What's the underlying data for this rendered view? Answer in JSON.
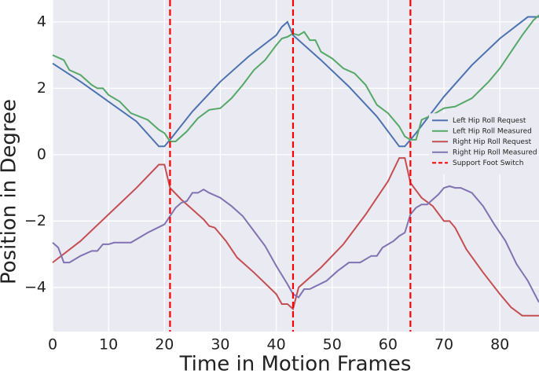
{
  "chart_data": {
    "type": "line",
    "xlabel": "Time in Motion Frames",
    "ylabel": "Position in Degree",
    "xlim": [
      0,
      87
    ],
    "ylim": [
      -5.33,
      4.66
    ],
    "xticks": [
      0,
      10,
      20,
      30,
      40,
      50,
      60,
      70,
      80
    ],
    "yticks": [
      {
        "value": -4,
        "label": "−4"
      },
      {
        "value": -2,
        "label": "−2"
      },
      0,
      2,
      4
    ],
    "grid": true,
    "legend": "center right",
    "series": [
      {
        "name": "Left Hip Roll Request",
        "color": "#4c72b0",
        "x": [
          0,
          5,
          10,
          15,
          19,
          20,
          21,
          25,
          30,
          35,
          40,
          41,
          42,
          43,
          48,
          53,
          58,
          62,
          63,
          65,
          70,
          75,
          80,
          85,
          87
        ],
        "values": [
          2.75,
          2.2,
          1.6,
          1.0,
          0.25,
          0.25,
          0.45,
          1.3,
          2.2,
          2.95,
          3.6,
          3.85,
          4.0,
          3.6,
          2.85,
          2.05,
          1.15,
          0.25,
          0.25,
          0.65,
          1.75,
          2.7,
          3.5,
          4.15,
          4.15
        ]
      },
      {
        "name": "Left Hip Roll Measured",
        "color": "#55a868",
        "x": [
          0,
          2,
          3,
          5,
          7,
          8,
          9,
          10,
          12,
          14,
          17,
          19,
          20,
          21,
          22,
          24,
          26,
          28,
          30,
          32,
          34,
          36,
          38,
          40,
          41,
          42,
          43,
          44,
          45,
          46,
          47,
          48,
          50,
          52,
          54,
          56,
          58,
          60,
          62,
          63,
          64,
          65,
          66,
          68,
          70,
          72,
          75,
          78,
          80,
          82,
          84,
          86,
          87
        ],
        "values": [
          3.0,
          2.85,
          2.55,
          2.4,
          2.1,
          2.0,
          2.0,
          1.8,
          1.6,
          1.25,
          1.05,
          0.75,
          0.65,
          0.4,
          0.4,
          0.7,
          1.1,
          1.35,
          1.4,
          1.7,
          2.1,
          2.55,
          2.85,
          3.3,
          3.5,
          3.55,
          3.65,
          3.6,
          3.7,
          3.45,
          3.45,
          3.1,
          2.9,
          2.6,
          2.45,
          2.1,
          1.5,
          1.25,
          0.85,
          0.55,
          0.45,
          0.45,
          1.05,
          1.2,
          1.4,
          1.45,
          1.7,
          2.2,
          2.6,
          3.1,
          3.6,
          4.05,
          4.2
        ]
      },
      {
        "name": "Right Hip Roll Request",
        "color": "#c44e52",
        "x": [
          0,
          5,
          10,
          15,
          19,
          20,
          21,
          23,
          25,
          27,
          28,
          29,
          31,
          33,
          36,
          40,
          41,
          42,
          43,
          44,
          48,
          52,
          56,
          60,
          62,
          63,
          64,
          66,
          68,
          70,
          71,
          72,
          74,
          77,
          80,
          82,
          84,
          87
        ],
        "values": [
          -3.25,
          -2.6,
          -1.8,
          -1.0,
          -0.3,
          -0.3,
          -1.0,
          -1.35,
          -1.65,
          -1.95,
          -2.15,
          -2.2,
          -2.6,
          -3.1,
          -3.55,
          -4.2,
          -4.5,
          -4.5,
          -4.65,
          -4.0,
          -3.4,
          -2.7,
          -1.8,
          -0.8,
          -0.1,
          -0.1,
          -0.85,
          -1.3,
          -1.55,
          -2.0,
          -2.0,
          -2.2,
          -2.85,
          -3.55,
          -4.2,
          -4.6,
          -4.85,
          -4.85
        ]
      },
      {
        "name": "Right Hip Roll Measured",
        "color": "#8172b2",
        "x": [
          0,
          1,
          2,
          3,
          5,
          7,
          8,
          9,
          10,
          11,
          14,
          17,
          20,
          21,
          22,
          23,
          24,
          25,
          26,
          27,
          28,
          30,
          32,
          34,
          36,
          38,
          40,
          42,
          43,
          44,
          45,
          46,
          49,
          51,
          53,
          55,
          57,
          58,
          59,
          61,
          62,
          63,
          64,
          65,
          66,
          67,
          69,
          70,
          71,
          72,
          73,
          75,
          77,
          79,
          81,
          83,
          85,
          87
        ],
        "values": [
          -2.65,
          -2.8,
          -3.25,
          -3.25,
          -3.05,
          -2.9,
          -2.9,
          -2.7,
          -2.7,
          -2.65,
          -2.65,
          -2.35,
          -2.1,
          -1.85,
          -1.6,
          -1.45,
          -1.4,
          -1.15,
          -1.15,
          -1.05,
          -1.15,
          -1.3,
          -1.55,
          -1.85,
          -2.3,
          -2.75,
          -3.35,
          -3.9,
          -4.2,
          -4.3,
          -4.05,
          -4.05,
          -3.8,
          -3.5,
          -3.25,
          -3.25,
          -3.05,
          -3.05,
          -2.8,
          -2.6,
          -2.45,
          -2.35,
          -1.8,
          -1.6,
          -1.5,
          -1.5,
          -1.2,
          -1.0,
          -0.95,
          -1.0,
          -1.0,
          -1.15,
          -1.55,
          -2.1,
          -2.6,
          -3.3,
          -3.8,
          -4.45
        ]
      },
      {
        "name": "Support Foot Switch",
        "color": "#ff0000",
        "vlines": [
          21,
          43,
          64
        ]
      }
    ]
  }
}
